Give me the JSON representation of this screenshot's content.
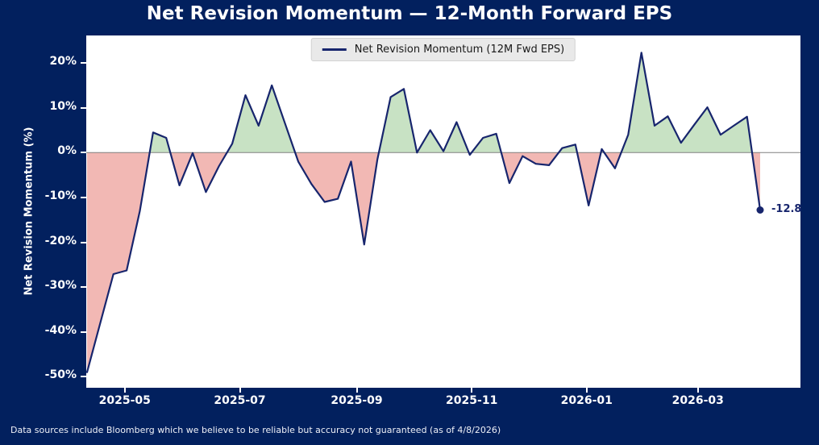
{
  "title": "Net Revision Momentum — 12-Month Forward EPS",
  "legend": {
    "label": "Net Revision Momentum (12M Fwd EPS)"
  },
  "y_axis": {
    "label": "Net Revision Momentum (%)",
    "tick_labels": [
      "20%",
      "10%",
      "0%",
      "-10%",
      "-20%",
      "-30%",
      "-40%",
      "-50%"
    ],
    "tick_values": [
      20,
      10,
      0,
      -10,
      -20,
      -30,
      -40,
      -50
    ]
  },
  "x_axis": {
    "tick_labels": [
      "2025-05",
      "2025-07",
      "2025-09",
      "2025-11",
      "2026-01",
      "2026-03"
    ]
  },
  "annotation": {
    "label": "-12.8"
  },
  "footer": "Data sources include Bloomberg which we believe to be reliable but accuracy not guaranteed (as of 4/8/2026)",
  "colors": {
    "background": "#02205e",
    "line": "#17256d",
    "positive_fill": "#c8e2c4",
    "negative_fill": "#f2b8b4",
    "zero_line": "#808080",
    "legend_background": "#e9e9e9",
    "tick_text": "#ffffff",
    "annotation_text": "#17256d"
  },
  "chart_data": {
    "type": "area",
    "title": "Net Revision Momentum — 12-Month Forward EPS",
    "xlabel": "",
    "ylabel": "Net Revision Momentum (%)",
    "ylim": [
      -52.5,
      26
    ],
    "zero_baseline": true,
    "grid": false,
    "legend_position": "upper center",
    "x_tick_labels": [
      "2025-05",
      "2025-07",
      "2025-09",
      "2025-11",
      "2026-01",
      "2026-03"
    ],
    "y_tick_labels": [
      "20%",
      "10%",
      "0%",
      "-10%",
      "-20%",
      "-30%",
      "-40%",
      "-50%"
    ],
    "x": [
      "2025-04-11",
      "2025-04-18",
      "2025-04-25",
      "2025-05-02",
      "2025-05-09",
      "2025-05-16",
      "2025-05-23",
      "2025-05-30",
      "2025-06-06",
      "2025-06-13",
      "2025-06-20",
      "2025-06-27",
      "2025-07-04",
      "2025-07-11",
      "2025-07-18",
      "2025-07-25",
      "2025-08-01",
      "2025-08-08",
      "2025-08-15",
      "2025-08-22",
      "2025-08-29",
      "2025-09-05",
      "2025-09-12",
      "2025-09-19",
      "2025-09-26",
      "2025-10-03",
      "2025-10-10",
      "2025-10-17",
      "2025-10-24",
      "2025-10-31",
      "2025-11-07",
      "2025-11-14",
      "2025-11-21",
      "2025-11-28",
      "2025-12-05",
      "2025-12-12",
      "2025-12-19",
      "2025-12-26",
      "2026-01-02",
      "2026-01-09",
      "2026-01-16",
      "2026-01-23",
      "2026-01-30",
      "2026-02-06",
      "2026-02-13",
      "2026-02-20",
      "2026-02-27",
      "2026-03-06",
      "2026-03-13",
      "2026-03-20",
      "2026-03-27",
      "2026-04-03"
    ],
    "series": [
      {
        "name": "Net Revision Momentum (12M Fwd EPS)",
        "values": [
          -49.0,
          -38.0,
          -27.1,
          -26.3,
          -13.0,
          4.5,
          3.3,
          -7.3,
          -0.1,
          -8.8,
          -3.0,
          2.0,
          12.8,
          6.0,
          15.0,
          6.5,
          -2.0,
          -7.0,
          -11.0,
          -10.3,
          -2.0,
          -20.5,
          -1.5,
          12.4,
          14.2,
          0.0,
          5.0,
          0.3,
          6.8,
          -0.5,
          3.3,
          4.2,
          -6.8,
          -0.8,
          -2.5,
          -2.8,
          1.0,
          1.8,
          -11.8,
          0.8,
          -3.5,
          4.0,
          22.3,
          6.0,
          8.1,
          2.2,
          6.2,
          10.1,
          4.0,
          6.0,
          8.0,
          -12.8
        ]
      }
    ],
    "last_point_label": "-12.8"
  }
}
